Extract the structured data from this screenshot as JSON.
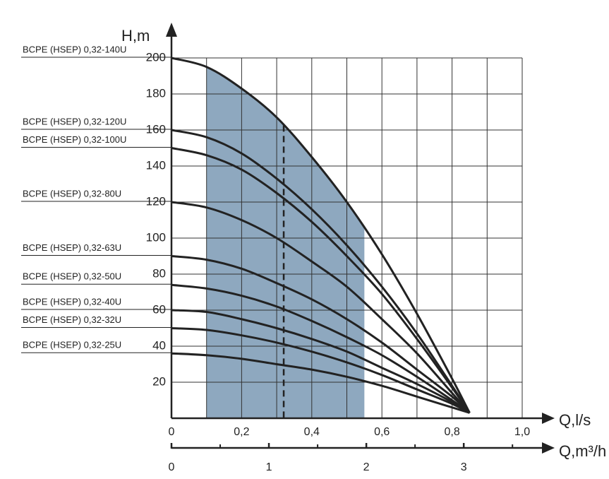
{
  "chart_data": {
    "type": "line",
    "y_label": "H,m",
    "x_label": "Q,l/s",
    "x2_label": "Q,m³/h",
    "xlim": [
      0,
      1.0
    ],
    "ylim": [
      0,
      200
    ],
    "xticks": [
      0,
      {
        "value": 0.2,
        "label": "0,2"
      },
      {
        "value": 0.4,
        "label": "0,4"
      },
      {
        "value": 0.6,
        "label": "0,6"
      },
      {
        "value": 0.8,
        "label": "0,8"
      },
      {
        "value": 1.0,
        "label": "1,0"
      }
    ],
    "xminorticks": [
      0.1,
      0.3,
      0.5,
      0.7,
      0.9
    ],
    "yticks": [
      20,
      40,
      60,
      80,
      100,
      120,
      140,
      160,
      180,
      200
    ],
    "x2lim": [
      0,
      3.6
    ],
    "x2ticks": [
      0,
      1,
      2,
      3
    ],
    "x2minorticks": [
      0.5,
      1.5,
      2.5,
      3.5
    ],
    "grid": true,
    "operating_range": [
      0.1,
      0.55
    ],
    "operating_range_color": "#8ea8bf",
    "nominal_q": 0.32,
    "x": [
      0,
      0.1,
      0.2,
      0.3,
      0.4,
      0.5,
      0.6,
      0.7,
      0.8,
      0.85
    ],
    "series": [
      {
        "name": "BCPE (HSEP) 0,32-140U",
        "color": "#222222",
        "values": [
          200,
          195,
          183,
          167,
          145,
          120,
          91,
          58,
          22,
          3
        ]
      },
      {
        "name": "BCPE (HSEP) 0,32-120U",
        "color": "#222222",
        "values": [
          160,
          156,
          147,
          133,
          116,
          96,
          73,
          47,
          18,
          3
        ]
      },
      {
        "name": "BCPE (HSEP) 0,32-100U",
        "color": "#222222",
        "values": [
          150,
          146,
          138,
          125,
          109,
          90,
          69,
          44,
          17,
          3
        ]
      },
      {
        "name": "BCPE (HSEP) 0,32-80U",
        "color": "#222222",
        "values": [
          120,
          117,
          110,
          100,
          87,
          73,
          55,
          36,
          14,
          3
        ]
      },
      {
        "name": "BCPE (HSEP) 0,32-63U",
        "color": "#222222",
        "values": [
          90,
          88,
          83,
          75,
          66,
          55,
          42,
          27,
          12,
          3
        ]
      },
      {
        "name": "BCPE (HSEP) 0,32-50U",
        "color": "#222222",
        "values": [
          74,
          72,
          68,
          62,
          54,
          45,
          35,
          23,
          10,
          3
        ]
      },
      {
        "name": "BCPE (HSEP) 0,32-40U",
        "color": "#222222",
        "values": [
          60,
          59,
          55,
          50,
          44,
          37,
          28,
          19,
          9,
          3
        ]
      },
      {
        "name": "BCPE (HSEP) 0,32-32U",
        "color": "#222222",
        "values": [
          50,
          49,
          46,
          42,
          37,
          31,
          24,
          16,
          8,
          3
        ]
      },
      {
        "name": "BCPE (HSEP) 0,32-25U",
        "color": "#222222",
        "values": [
          36,
          35,
          33,
          30,
          27,
          23,
          18,
          12,
          6,
          3
        ]
      }
    ]
  }
}
